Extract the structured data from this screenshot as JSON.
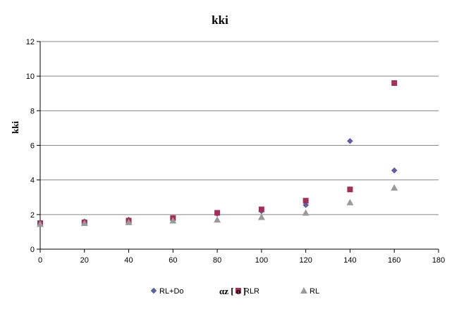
{
  "chart_data": {
    "type": "scatter",
    "title": "kki",
    "xlabel": "αz [ o ]",
    "ylabel": "kki",
    "xlim": [
      0,
      180
    ],
    "ylim": [
      0,
      12
    ],
    "xticks": [
      0,
      20,
      40,
      60,
      80,
      100,
      120,
      140,
      160,
      180
    ],
    "yticks": [
      0,
      2,
      4,
      6,
      8,
      10,
      12
    ],
    "xtick_labels": [
      "0",
      "20",
      "40",
      "60",
      "80",
      "100",
      "120",
      "140",
      "160",
      "180"
    ],
    "ytick_labels": [
      "0",
      "2",
      "4",
      "6",
      "8",
      "10",
      "12"
    ],
    "grid": "horizontal",
    "legend_position": "bottom",
    "series": [
      {
        "name": "RL+Do",
        "marker": "diamond",
        "color": "#6060a8",
        "x": [
          0,
          20,
          40,
          60,
          80,
          100,
          120,
          140,
          160
        ],
        "y": [
          1.55,
          1.6,
          1.7,
          1.8,
          2.05,
          2.2,
          2.55,
          6.25,
          4.55
        ]
      },
      {
        "name": "RLR",
        "marker": "square",
        "color": "#a0305a",
        "x": [
          0,
          20,
          40,
          60,
          80,
          100,
          120,
          140,
          160
        ],
        "y": [
          1.5,
          1.55,
          1.65,
          1.8,
          2.1,
          2.3,
          2.8,
          3.45,
          9.6
        ]
      },
      {
        "name": "RL",
        "marker": "triangle",
        "color": "#9a9a9a",
        "x": [
          0,
          20,
          40,
          60,
          80,
          100,
          120,
          140,
          160
        ],
        "y": [
          1.45,
          1.5,
          1.55,
          1.65,
          1.7,
          1.85,
          2.1,
          2.7,
          3.55
        ]
      }
    ]
  }
}
